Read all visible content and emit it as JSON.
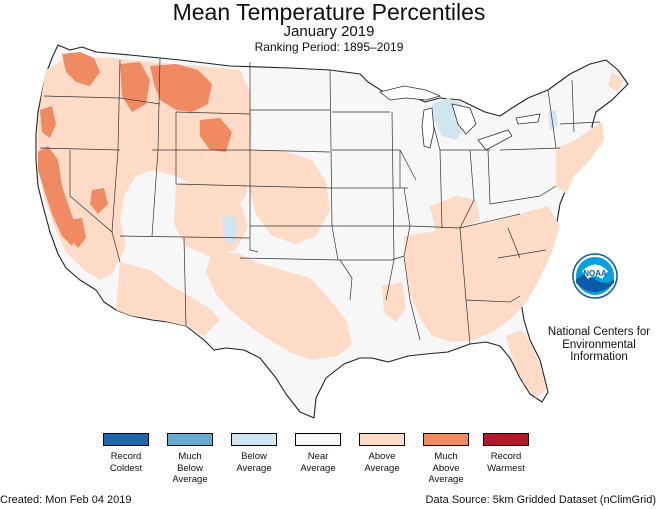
{
  "title": "Mean Temperature Percentiles",
  "subtitle": "January 2019",
  "ranking_period": "Ranking Period: 1895–2019",
  "agency": {
    "logo_text": "NOAA",
    "line1": "National Centers for",
    "line2": "Environmental",
    "line3": "Information"
  },
  "legend": [
    {
      "label": "Record\nColdest",
      "color": "#2166ac"
    },
    {
      "label": "Much\nBelow\nAverage",
      "color": "#67a9cf"
    },
    {
      "label": "Below\nAverage",
      "color": "#d1e5f0"
    },
    {
      "label": "Near\nAverage",
      "color": "#f7f7f7"
    },
    {
      "label": "Above\nAverage",
      "color": "#fddbc7"
    },
    {
      "label": "Much\nAbove\nAverage",
      "color": "#ef8a62"
    },
    {
      "label": "Record\nWarmest",
      "color": "#b2182b"
    }
  ],
  "footer": {
    "created": "Created: Mon Feb 04 2019",
    "source": "Data Source: 5km Gridded Dataset (nClimGrid)"
  },
  "colors": {
    "near_average": "#f7f7f7",
    "above_average": "#fddbc7",
    "much_above_average": "#ef8a62",
    "below_average": "#d1e5f0",
    "water": "#ffffff",
    "borders": "#222222"
  }
}
